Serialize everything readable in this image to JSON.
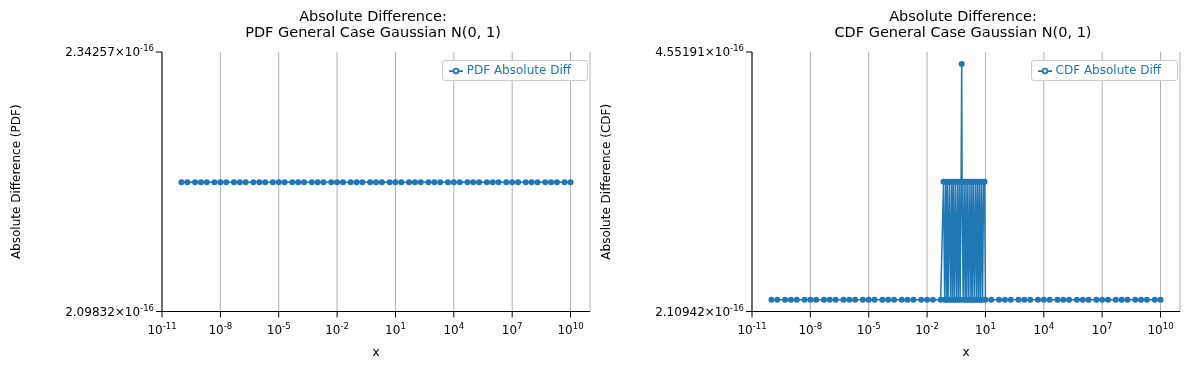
{
  "chart_data": [
    {
      "type": "line",
      "title": "Absolute Difference:\nPDF General Case Gaussian N(0, 1)",
      "xlabel": "x",
      "ylabel": "Absolute Difference (PDF)",
      "x": [
        1e-10,
        2e-10,
        5e-10,
        1e-09,
        2e-09,
        5e-09,
        1e-08,
        2e-08,
        5e-08,
        1e-07,
        2e-07,
        5e-07,
        1e-06,
        2e-06,
        5e-06,
        1e-05,
        2e-05,
        5e-05,
        0.0001,
        0.0002,
        0.0005,
        0.001,
        0.002,
        0.005,
        0.01,
        0.02,
        0.05,
        0.1,
        0.2,
        0.5,
        1,
        2,
        5,
        10,
        20,
        50,
        100,
        200,
        500,
        1000,
        2000,
        5000,
        10000.0,
        20000.0,
        50000.0,
        100000.0,
        200000.0,
        500000.0,
        1000000.0,
        2000000.0,
        5000000.0,
        10000000.0,
        20000000.0,
        50000000.0,
        100000000.0,
        200000000.0,
        500000000.0,
        1000000000.0,
        2000000000.0,
        5000000000.0,
        10000000000.0
      ],
      "series": [
        {
          "name": "PDF Absolute Diff",
          "color": "#1f77b4",
          "values": [
            2.22e-16,
            2.22e-16,
            2.22e-16,
            2.22e-16,
            2.22e-16,
            2.22e-16,
            2.22e-16,
            2.22e-16,
            2.22e-16,
            2.22e-16,
            2.22e-16,
            2.22e-16,
            2.22e-16,
            2.22e-16,
            2.22e-16,
            2.22e-16,
            2.22e-16,
            2.22e-16,
            2.22e-16,
            2.22e-16,
            2.22e-16,
            2.22e-16,
            2.22e-16,
            2.22e-16,
            2.22e-16,
            2.22e-16,
            2.22e-16,
            2.22e-16,
            2.22e-16,
            2.22e-16,
            2.22e-16,
            2.22e-16,
            2.22e-16,
            2.22e-16,
            2.22e-16,
            2.22e-16,
            2.22e-16,
            2.22e-16,
            2.22e-16,
            2.22e-16,
            2.22e-16,
            2.22e-16,
            2.22e-16,
            2.22e-16,
            2.22e-16,
            2.22e-16,
            2.22e-16,
            2.22e-16,
            2.22e-16,
            2.22e-16,
            2.22e-16,
            2.22e-16,
            2.22e-16,
            2.22e-16,
            2.22e-16,
            2.22e-16,
            2.22e-16,
            2.22e-16,
            2.22e-16,
            2.22e-16,
            2.22e-16
          ]
        }
      ],
      "log": "x",
      "xlim": [
        1e-11,
        100000000000.0
      ],
      "xticks": [
        {
          "value": 1e-11,
          "label": "10$^{-11}$"
        },
        {
          "value": 1e-08,
          "label": "10$^{-8}$"
        },
        {
          "value": 1e-05,
          "label": "10$^{-5}$"
        },
        {
          "value": 0.01,
          "label": "10$^{-2}$"
        },
        {
          "value": 10,
          "label": "10$^{1}$"
        },
        {
          "value": 10000,
          "label": "10$^{4}$"
        },
        {
          "value": 10000000.0,
          "label": "10$^{7}$"
        },
        {
          "value": 10000000000.0,
          "label": "10$^{10}$"
        }
      ],
      "ylim": [
        2.09832e-16,
        2.34257e-16
      ],
      "yticks": [
        {
          "value": 2.09832e-16,
          "label": "2.09832×10$^{-16}$"
        },
        {
          "value": 2.34257e-16,
          "label": "2.34257×10$^{-16}$"
        }
      ],
      "grid": "x",
      "legend": "top right",
      "marker": "circle",
      "line_style": "solid"
    },
    {
      "type": "line",
      "title": "Absolute Difference:\nCDF General Case Gaussian N(0, 1)",
      "xlabel": "x",
      "ylabel": "Absolute Difference (CDF)",
      "x": [
        1e-10,
        2e-10,
        5e-10,
        1e-09,
        2e-09,
        5e-09,
        1e-08,
        2e-08,
        5e-08,
        1e-07,
        2e-07,
        5e-07,
        1e-06,
        2e-06,
        5e-06,
        1e-05,
        2e-05,
        5e-05,
        0.0001,
        0.0002,
        0.0005,
        0.001,
        0.002,
        0.005,
        0.01,
        0.02,
        0.05,
        0.07,
        0.08,
        0.09,
        0.1,
        0.11,
        0.12,
        0.14,
        0.16,
        0.18,
        0.2,
        0.22,
        0.25,
        0.28,
        0.32,
        0.36,
        0.4,
        0.45,
        0.5,
        0.56,
        0.6,
        0.63,
        0.71,
        0.8,
        0.9,
        1,
        1.1,
        1.25,
        1.4,
        1.6,
        1.8,
        2,
        2.2,
        2.5,
        2.8,
        3.2,
        3.6,
        4,
        4.5,
        5,
        5.6,
        6.3,
        7.1,
        8,
        9,
        10,
        20,
        50,
        100,
        200,
        500,
        1000,
        2000,
        5000,
        10000.0,
        20000.0,
        50000.0,
        100000.0,
        200000.0,
        500000.0,
        1000000.0,
        2000000.0,
        5000000.0,
        10000000.0,
        20000000.0,
        50000000.0,
        100000000.0,
        200000000.0,
        500000000.0,
        1000000000.0,
        2000000000.0,
        5000000000.0,
        10000000000.0
      ],
      "series": [
        {
          "name": "CDF Absolute Diff",
          "color": "#1f77b4",
          "values": [
            2.22e-16,
            2.22e-16,
            2.22e-16,
            2.22e-16,
            2.22e-16,
            2.22e-16,
            2.22e-16,
            2.22e-16,
            2.22e-16,
            2.22e-16,
            2.22e-16,
            2.22e-16,
            2.22e-16,
            2.22e-16,
            2.22e-16,
            2.22e-16,
            2.22e-16,
            2.22e-16,
            2.22e-16,
            2.22e-16,
            2.22e-16,
            2.22e-16,
            2.22e-16,
            2.22e-16,
            2.22e-16,
            2.22e-16,
            2.22e-16,
            3.33e-16,
            2.22e-16,
            3.33e-16,
            2.22e-16,
            3.33e-16,
            2.22e-16,
            3.33e-16,
            2.22e-16,
            3.33e-16,
            2.22e-16,
            3.33e-16,
            2.22e-16,
            3.33e-16,
            2.22e-16,
            3.33e-16,
            2.22e-16,
            3.33e-16,
            2.22e-16,
            3.33e-16,
            4.44e-16,
            3.33e-16,
            2.22e-16,
            3.33e-16,
            2.22e-16,
            3.33e-16,
            2.22e-16,
            3.33e-16,
            2.22e-16,
            3.33e-16,
            2.22e-16,
            3.33e-16,
            2.22e-16,
            3.33e-16,
            2.22e-16,
            3.33e-16,
            2.22e-16,
            3.33e-16,
            2.22e-16,
            3.33e-16,
            2.22e-16,
            3.33e-16,
            2.22e-16,
            3.33e-16,
            3.33e-16,
            2.22e-16,
            2.22e-16,
            2.22e-16,
            2.22e-16,
            2.22e-16,
            2.22e-16,
            2.22e-16,
            2.22e-16,
            2.22e-16,
            2.22e-16,
            2.22e-16,
            2.22e-16,
            2.22e-16,
            2.22e-16,
            2.22e-16,
            2.22e-16,
            2.22e-16,
            2.22e-16,
            2.22e-16,
            2.22e-16,
            2.22e-16,
            2.22e-16,
            2.22e-16,
            2.22e-16,
            2.22e-16,
            2.22e-16,
            2.22e-16,
            2.22e-16
          ]
        }
      ],
      "log": "x",
      "xlim": [
        1e-11,
        100000000000.0
      ],
      "xticks": [
        {
          "value": 1e-11,
          "label": "10$^{-11}$"
        },
        {
          "value": 1e-08,
          "label": "10$^{-8}$"
        },
        {
          "value": 1e-05,
          "label": "10$^{-5}$"
        },
        {
          "value": 0.01,
          "label": "10$^{-2}$"
        },
        {
          "value": 10,
          "label": "10$^{1}$"
        },
        {
          "value": 10000,
          "label": "10$^{4}$"
        },
        {
          "value": 10000000.0,
          "label": "10$^{7}$"
        },
        {
          "value": 10000000000.0,
          "label": "10$^{10}$"
        }
      ],
      "ylim": [
        2.10942e-16,
        4.55191e-16
      ],
      "yticks": [
        {
          "value": 2.10942e-16,
          "label": "2.10942×10$^{-16}$"
        },
        {
          "value": 4.55191e-16,
          "label": "4.55191×10$^{-16}$"
        }
      ],
      "grid": "x",
      "legend": "top right",
      "marker": "circle",
      "line_style": "solid"
    }
  ]
}
